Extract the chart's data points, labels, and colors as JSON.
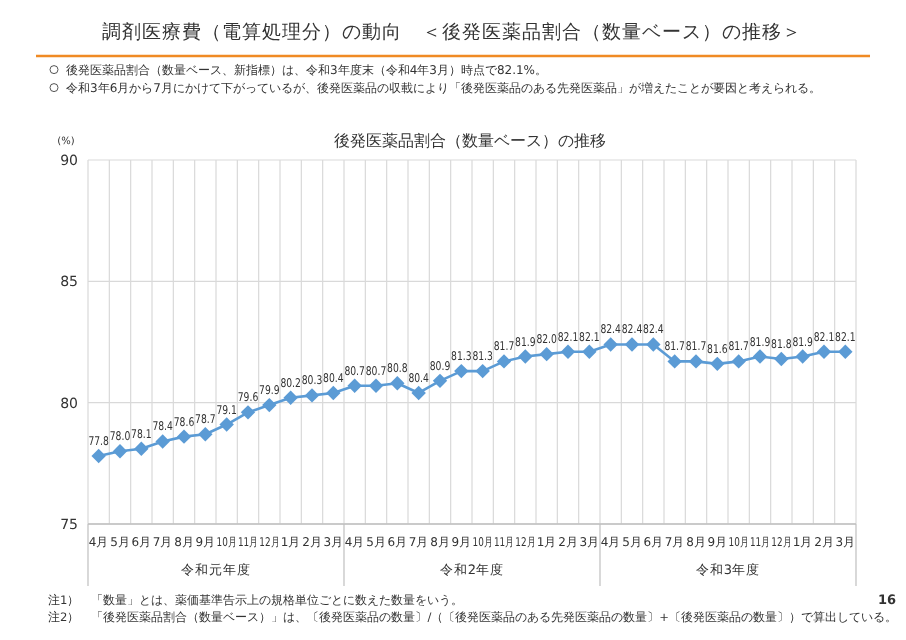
{
  "chart_data": {
    "type": "line",
    "title": "調剤医療費（電算処理分）の動向　＜後発医薬品割合（数量ベース）の推移＞",
    "subtitle": "後発医薬品割合（数量ベース）の推移",
    "ylabel": "(%)",
    "categories": [
      "4月",
      "5月",
      "6月",
      "7月",
      "8月",
      "9月",
      "10月",
      "11月",
      "12月",
      "1月",
      "2月",
      "3月",
      "4月",
      "5月",
      "6月",
      "7月",
      "8月",
      "9月",
      "10月",
      "11月",
      "12月",
      "1月",
      "2月",
      "3月",
      "4月",
      "5月",
      "6月",
      "7月",
      "8月",
      "9月",
      "10月",
      "11月",
      "12月",
      "1月",
      "2月",
      "3月"
    ],
    "values": [
      77.8,
      78.0,
      78.1,
      78.4,
      78.6,
      78.7,
      79.1,
      79.6,
      79.9,
      80.2,
      80.3,
      80.4,
      80.7,
      80.7,
      80.8,
      80.4,
      80.9,
      81.3,
      81.3,
      81.7,
      81.9,
      82.0,
      82.1,
      82.1,
      82.4,
      82.4,
      82.4,
      81.7,
      81.7,
      81.6,
      81.7,
      81.9,
      81.8,
      81.9,
      82.1,
      82.1
    ],
    "value_labels": [
      "77.8",
      "78.0",
      "78.1",
      "78.4",
      "78.6",
      "78.7",
      "79.1",
      "79.6",
      "79.9",
      "80.2",
      "80.3",
      "80.4",
      "80.7",
      "80.7",
      "80.8",
      "80.4",
      "80.9",
      "81.3",
      "81.3",
      "81.7",
      "81.9",
      "82.0",
      "82.1",
      "82.1",
      "82.4",
      "82.4",
      "82.4",
      "81.7",
      "81.7",
      "81.6",
      "81.7",
      "81.9",
      "81.8",
      "81.9",
      "82.1",
      "82.1"
    ],
    "color": "#5b9bd5",
    "ylim": [
      75,
      90
    ],
    "yticks": [
      75,
      80,
      85,
      90
    ],
    "grid": true,
    "marker": "diamond",
    "annotations": [
      "後発医薬品割合（数量ベース、新指標）は、令和3年度末（令和4年3月）時点で82.1%。",
      "令和3年6月から7月にかけて下がっているが、後発医薬品の収載により「後発医薬品のある先発医薬品」が増えたことが要因と考えられる。",
      "令和元年度",
      "令和2年度",
      "令和3年度",
      "注1）　「数量」とは、薬価基準告示上の規格単位ごとに数えた数量をいう。",
      "注2）　「後発医薬品割合（数量ベース）」は、〔後発医薬品の数量〕/（〔後発医薬品のある先発医薬品の数量〕+〔後発医薬品の数量〕）で算出している。",
      "16"
    ]
  }
}
